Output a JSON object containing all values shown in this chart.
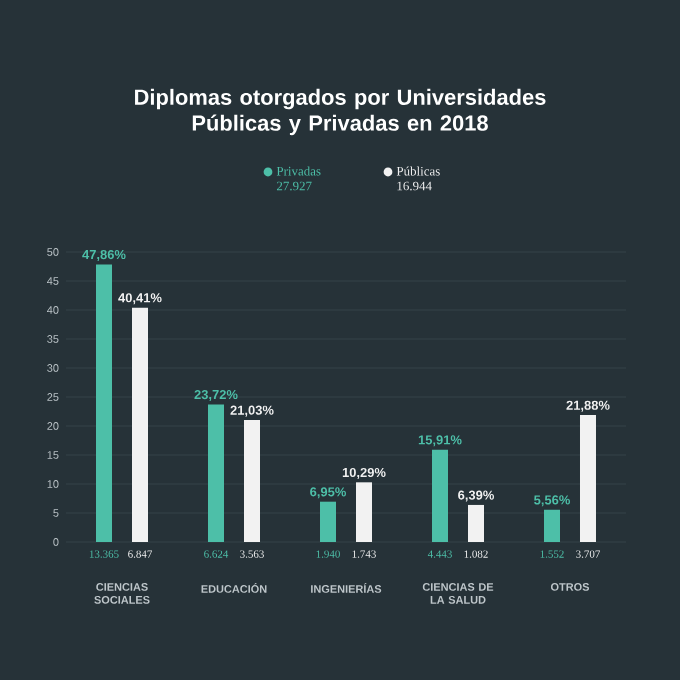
{
  "chart_data": {
    "type": "bar",
    "title": "Diplomas otorgados por Universidades Públicas y Privadas en 2018",
    "categories": [
      "CIENCIAS SOCIALES",
      "EDUCACIÓN",
      "INGENIERÍAS",
      "CIENCIAS DE LA SALUD",
      "OTROS"
    ],
    "series": [
      {
        "name": "Privadas",
        "color": "#4dbfa8",
        "values": [
          47.86,
          23.72,
          6.95,
          15.91,
          5.56
        ],
        "value_labels": [
          "47,86%",
          "23,72%",
          "6,95%",
          "15,91%",
          "5,56%"
        ]
      },
      {
        "name": "Públicas",
        "color": "#f2f2f2",
        "values": [
          40.41,
          21.03,
          10.29,
          6.39,
          21.88
        ],
        "value_labels": [
          "40,41%",
          "21,03%",
          "10,29%",
          "6,39%",
          "21,88%"
        ]
      }
    ],
    "ylim": [
      0,
      50
    ],
    "yticks": [
      0,
      5,
      10,
      15,
      20,
      25,
      30,
      35,
      40,
      45,
      50
    ],
    "grid": "y",
    "legend": "top",
    "annotations": [
      "27.927",
      "16.944",
      "13.365",
      "6.847",
      "6.624",
      "3.563",
      "1.940",
      "1.743",
      "4.443",
      "1.082",
      "1.552",
      "3.707"
    ]
  }
}
